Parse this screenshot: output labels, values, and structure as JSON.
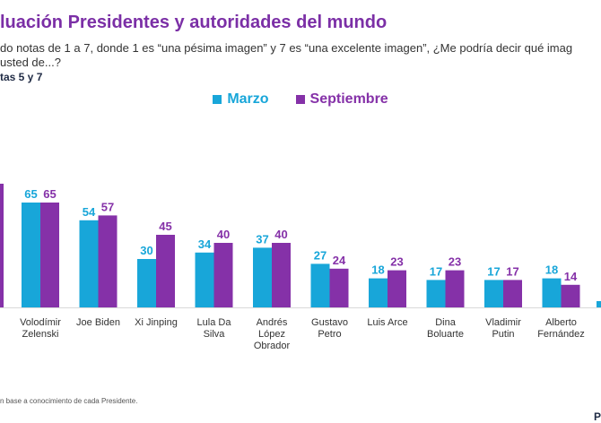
{
  "header": {
    "title": "luación Presidentes y autoridades del mundo",
    "question_line1": "do notas de 1 a 7, donde 1 es “una pésima imagen” y 7 es “una excelente imagen”, ¿Me podría decir qué imag",
    "question_line2": "usted de...?",
    "subtitle": "tas 5 y 7"
  },
  "footnote": "n base a conocimiento de cada Presidente.",
  "logo_text": "P",
  "colors": {
    "marzo": "#18a6d9",
    "septiembre": "#8531a8",
    "title": "#7b2fa6"
  },
  "chart_data": {
    "type": "bar",
    "categories": [
      [
        "Volodímir",
        "Zelenski"
      ],
      [
        "Joe Biden"
      ],
      [
        "Xi Jinping"
      ],
      [
        "Lula Da",
        "Silva"
      ],
      [
        "Andrés",
        "López",
        "Obrador"
      ],
      [
        "Gustavo",
        "Petro"
      ],
      [
        "Luis Arce"
      ],
      [
        "Dina",
        "Boluarte"
      ],
      [
        "Vladimir",
        "Putin"
      ],
      [
        "Alberto",
        "Fernández"
      ]
    ],
    "series": [
      {
        "name": "Marzo",
        "values": [
          65,
          54,
          30,
          34,
          37,
          27,
          18,
          17,
          17,
          18
        ]
      },
      {
        "name": "Septiembre",
        "values": [
          65,
          57,
          45,
          40,
          40,
          24,
          23,
          23,
          17,
          14
        ]
      }
    ],
    "ylim": [
      0,
      100
    ],
    "grid": false,
    "legend_position": "top-center"
  }
}
